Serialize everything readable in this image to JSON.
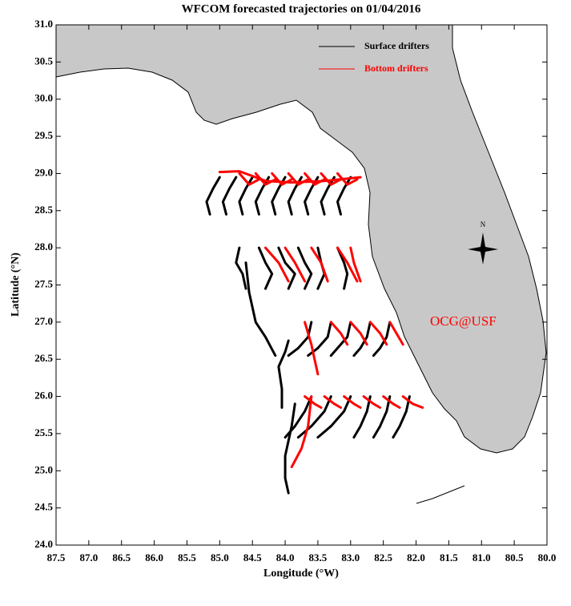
{
  "chart_data": {
    "type": "trajectory",
    "title": "WFCOM forecasted trajectories on 01/04/2016",
    "x_label": "Longitude (°W)",
    "y_label": "Latitude (°N)",
    "annotation": "OCG@USF",
    "compass_label": "N",
    "xlim": [
      87.5,
      80.0
    ],
    "ylim": [
      24.0,
      31.0
    ],
    "xticks": [
      87.5,
      {
        "value": 87,
        "label": "87.0"
      },
      86.5,
      {
        "value": 86,
        "label": "86.0"
      },
      85.5,
      {
        "value": 85,
        "label": "85.0"
      },
      84.5,
      {
        "value": 84,
        "label": "84.0"
      },
      83.5,
      {
        "value": 83,
        "label": "83.0"
      },
      82.5,
      {
        "value": 82,
        "label": "82.0"
      },
      81.5,
      {
        "value": 81,
        "label": "81.0"
      },
      80.5,
      {
        "value": 80,
        "label": "80.0"
      }
    ],
    "yticks": [
      {
        "value": 24,
        "label": "24.0"
      },
      24.5,
      {
        "value": 25,
        "label": "25.0"
      },
      25.5,
      {
        "value": 26,
        "label": "26.0"
      },
      26.5,
      {
        "value": 27,
        "label": "27.0"
      },
      27.5,
      {
        "value": 28,
        "label": "28.0"
      },
      28.5,
      {
        "value": 29,
        "label": "29.0"
      },
      29.5,
      {
        "value": 30,
        "label": "30.0"
      },
      30.5,
      {
        "value": 31,
        "label": "31.0"
      }
    ],
    "series": [
      {
        "name": "Surface drifters",
        "color": "#000000",
        "tracks": [
          {
            "x": [
              85.0,
              85.1,
              85.2,
              85.15
            ],
            "y": [
              28.95,
              28.8,
              28.62,
              28.45
            ]
          },
          {
            "x": [
              84.75,
              84.85,
              84.95,
              84.9
            ],
            "y": [
              28.95,
              28.8,
              28.62,
              28.45
            ]
          },
          {
            "x": [
              84.5,
              84.6,
              84.7,
              84.65
            ],
            "y": [
              28.95,
              28.8,
              28.62,
              28.45
            ]
          },
          {
            "x": [
              84.25,
              84.35,
              84.45,
              84.4
            ],
            "y": [
              28.95,
              28.8,
              28.62,
              28.45
            ]
          },
          {
            "x": [
              84.0,
              84.1,
              84.2,
              84.15
            ],
            "y": [
              28.95,
              28.8,
              28.62,
              28.45
            ]
          },
          {
            "x": [
              83.75,
              83.85,
              83.95,
              83.9
            ],
            "y": [
              28.95,
              28.8,
              28.62,
              28.45
            ]
          },
          {
            "x": [
              83.5,
              83.6,
              83.7,
              83.65
            ],
            "y": [
              28.95,
              28.8,
              28.62,
              28.45
            ]
          },
          {
            "x": [
              83.25,
              83.35,
              83.45,
              83.4
            ],
            "y": [
              28.95,
              28.8,
              28.62,
              28.45
            ]
          },
          {
            "x": [
              83.0,
              83.1,
              83.2,
              83.15
            ],
            "y": [
              28.95,
              28.8,
              28.62,
              28.45
            ]
          },
          {
            "x": [
              84.7,
              84.75,
              84.65,
              84.6
            ],
            "y": [
              28.0,
              27.8,
              27.65,
              27.45
            ]
          },
          {
            "x": [
              84.6,
              84.55,
              84.45,
              84.3,
              84.15
            ],
            "y": [
              27.8,
              27.4,
              27.0,
              26.8,
              26.55
            ]
          },
          {
            "x": [
              84.4,
              84.3,
              84.2,
              84.3
            ],
            "y": [
              28.0,
              27.8,
              27.65,
              27.45
            ]
          },
          {
            "x": [
              84.1,
              84.0,
              83.85,
              83.95
            ],
            "y": [
              28.0,
              27.8,
              27.65,
              27.45
            ]
          },
          {
            "x": [
              83.8,
              83.7,
              83.6,
              83.7
            ],
            "y": [
              28.0,
              27.8,
              27.65,
              27.45
            ]
          },
          {
            "x": [
              83.5,
              83.45,
              83.4,
              83.5
            ],
            "y": [
              28.0,
              27.8,
              27.65,
              27.45
            ]
          },
          {
            "x": [
              83.2,
              83.1,
              83.05,
              83.1
            ],
            "y": [
              28.0,
              27.8,
              27.65,
              27.45
            ]
          },
          {
            "x": [
              83.95,
              84.0,
              84.1,
              84.05,
              84.05
            ],
            "y": [
              26.75,
              26.6,
              26.4,
              26.1,
              25.85
            ]
          },
          {
            "x": [
              83.6,
              83.65,
              83.8,
              83.95
            ],
            "y": [
              27.0,
              26.8,
              26.65,
              26.55
            ]
          },
          {
            "x": [
              83.3,
              83.35,
              83.5,
              83.65
            ],
            "y": [
              27.0,
              26.8,
              26.65,
              26.55
            ]
          },
          {
            "x": [
              83.0,
              83.05,
              83.2,
              83.3
            ],
            "y": [
              27.0,
              26.8,
              26.65,
              26.55
            ]
          },
          {
            "x": [
              82.7,
              82.75,
              82.85,
              82.95
            ],
            "y": [
              27.0,
              26.8,
              26.65,
              26.55
            ]
          },
          {
            "x": [
              82.4,
              82.45,
              82.55,
              82.65
            ],
            "y": [
              27.0,
              26.8,
              26.65,
              26.55
            ]
          },
          {
            "x": [
              83.85,
              83.9,
              84.0,
              84.0,
              83.95
            ],
            "y": [
              25.9,
              25.6,
              25.2,
              24.9,
              24.7
            ]
          },
          {
            "x": [
              83.6,
              83.7,
              83.85,
              84.0
            ],
            "y": [
              26.0,
              25.8,
              25.6,
              25.45
            ]
          },
          {
            "x": [
              83.3,
              83.4,
              83.6,
              83.8
            ],
            "y": [
              26.0,
              25.8,
              25.6,
              25.45
            ]
          },
          {
            "x": [
              83.0,
              83.1,
              83.3,
              83.5
            ],
            "y": [
              26.0,
              25.8,
              25.6,
              25.45
            ]
          },
          {
            "x": [
              82.7,
              82.75,
              82.85,
              82.95
            ],
            "y": [
              26.0,
              25.8,
              25.6,
              25.45
            ]
          },
          {
            "x": [
              82.4,
              82.45,
              82.55,
              82.65
            ],
            "y": [
              26.0,
              25.8,
              25.6,
              25.45
            ]
          },
          {
            "x": [
              82.1,
              82.15,
              82.25,
              82.35
            ],
            "y": [
              26.0,
              25.8,
              25.6,
              25.45
            ]
          }
        ]
      },
      {
        "name": "Bottom drifters",
        "color": "#ff0000",
        "tracks": [
          {
            "x": [
              85.0,
              84.7,
              84.3,
              83.9,
              83.4,
              82.85
            ],
            "y": [
              29.02,
              29.03,
              28.9,
              28.88,
              28.9,
              28.95
            ]
          },
          {
            "x": [
              84.7,
              84.55,
              84.4
            ],
            "y": [
              29.0,
              28.85,
              28.92
            ]
          },
          {
            "x": [
              84.45,
              84.3,
              84.15
            ],
            "y": [
              29.0,
              28.85,
              28.92
            ]
          },
          {
            "x": [
              84.2,
              84.05,
              83.9
            ],
            "y": [
              29.0,
              28.85,
              28.92
            ]
          },
          {
            "x": [
              83.95,
              83.8,
              83.65
            ],
            "y": [
              29.0,
              28.85,
              28.92
            ]
          },
          {
            "x": [
              83.7,
              83.55,
              83.4
            ],
            "y": [
              29.0,
              28.85,
              28.92
            ]
          },
          {
            "x": [
              83.45,
              83.3,
              83.15
            ],
            "y": [
              29.0,
              28.85,
              28.92
            ]
          },
          {
            "x": [
              83.2,
              83.05,
              82.9
            ],
            "y": [
              29.0,
              28.85,
              28.92
            ]
          },
          {
            "x": [
              84.3,
              84.1,
              83.95
            ],
            "y": [
              28.0,
              27.8,
              27.55
            ]
          },
          {
            "x": [
              84.0,
              83.85,
              83.7
            ],
            "y": [
              28.0,
              27.8,
              27.55
            ]
          },
          {
            "x": [
              83.6,
              83.45,
              83.35
            ],
            "y": [
              28.0,
              27.8,
              27.55
            ]
          },
          {
            "x": [
              83.2,
              83.05,
              82.9
            ],
            "y": [
              28.0,
              27.8,
              27.55
            ]
          },
          {
            "x": [
              83.0,
              82.95,
              82.85
            ],
            "y": [
              28.0,
              27.8,
              27.55
            ]
          },
          {
            "x": [
              83.7,
              83.6,
              83.55,
              83.5
            ],
            "y": [
              27.0,
              26.7,
              26.5,
              26.3
            ]
          },
          {
            "x": [
              83.3,
              83.15,
              83.05
            ],
            "y": [
              27.0,
              26.85,
              26.7
            ]
          },
          {
            "x": [
              83.0,
              82.85,
              82.75
            ],
            "y": [
              27.0,
              26.85,
              26.7
            ]
          },
          {
            "x": [
              82.7,
              82.55,
              82.45
            ],
            "y": [
              27.0,
              26.85,
              26.7
            ]
          },
          {
            "x": [
              82.4,
              82.3,
              82.2
            ],
            "y": [
              27.0,
              26.85,
              26.7
            ]
          },
          {
            "x": [
              83.6,
              83.65,
              83.75,
              83.9
            ],
            "y": [
              26.0,
              25.6,
              25.3,
              25.05
            ]
          },
          {
            "x": [
              83.7,
              83.55,
              83.45
            ],
            "y": [
              26.0,
              25.9,
              25.85
            ]
          },
          {
            "x": [
              83.4,
              83.25,
              83.15
            ],
            "y": [
              26.0,
              25.9,
              25.85
            ]
          },
          {
            "x": [
              83.1,
              82.95,
              82.85
            ],
            "y": [
              26.0,
              25.9,
              25.85
            ]
          },
          {
            "x": [
              82.8,
              82.65,
              82.55
            ],
            "y": [
              26.0,
              25.9,
              25.85
            ]
          },
          {
            "x": [
              82.5,
              82.35,
              82.25
            ],
            "y": [
              26.0,
              25.9,
              25.85
            ]
          },
          {
            "x": [
              82.2,
              82.05,
              81.9
            ],
            "y": [
              26.0,
              25.9,
              25.85
            ]
          }
        ]
      }
    ]
  }
}
